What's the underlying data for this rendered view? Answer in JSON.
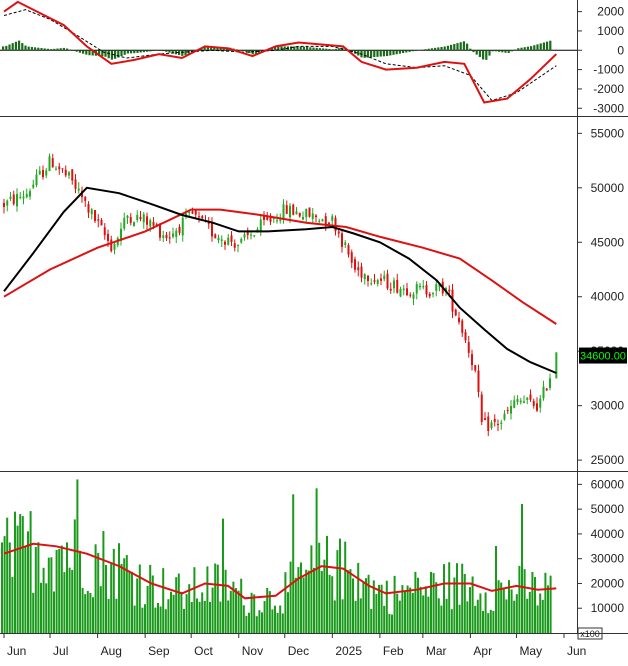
{
  "chart_data": {
    "type": "stock-chart",
    "x_axis": {
      "labels": [
        "Jun",
        "Jul",
        "Aug",
        "Sep",
        "Oct",
        "Nov",
        "Dec",
        "2025",
        "Feb",
        "Mar",
        "Apr",
        "May",
        "Jun"
      ],
      "range": [
        "2024-06-01",
        "2025-06-01"
      ]
    },
    "price_panel": {
      "type": "candlestick",
      "yticks": [
        25000,
        30000,
        35000,
        40000,
        45000,
        50000,
        55000
      ],
      "ylim": [
        24000,
        56500
      ],
      "last_price_label": "34600.00",
      "last_price": 34600,
      "colors": {
        "up": "#22aa22",
        "down": "#dd1111",
        "ma_short": "#000000",
        "ma_long": "#dd1111",
        "last_label_bg": "#000000",
        "last_label_text": "#00ff00"
      },
      "candles_close_approx": [
        [
          "2024-06-01",
          48500
        ],
        [
          "2024-06-15",
          49500
        ],
        [
          "2024-07-01",
          52500
        ],
        [
          "2024-07-15",
          50500
        ],
        [
          "2024-08-01",
          46500
        ],
        [
          "2024-08-10",
          44500
        ],
        [
          "2024-08-20",
          47500
        ],
        [
          "2024-09-01",
          47000
        ],
        [
          "2024-09-15",
          45500
        ],
        [
          "2024-10-01",
          47500
        ],
        [
          "2024-10-15",
          45800
        ],
        [
          "2024-11-01",
          44800
        ],
        [
          "2024-11-15",
          46500
        ],
        [
          "2024-12-01",
          48000
        ],
        [
          "2024-12-15",
          47500
        ],
        [
          "2025-01-01",
          47000
        ],
        [
          "2025-01-15",
          42500
        ],
        [
          "2025-02-01",
          41500
        ],
        [
          "2025-02-15",
          40800
        ],
        [
          "2025-03-01",
          40600
        ],
        [
          "2025-03-15",
          40800
        ],
        [
          "2025-03-25",
          37500
        ],
        [
          "2025-04-03",
          33500
        ],
        [
          "2025-04-08",
          28000
        ],
        [
          "2025-04-20",
          28500
        ],
        [
          "2025-05-01",
          30500
        ],
        [
          "2025-05-15",
          30000
        ],
        [
          "2025-05-27",
          34600
        ]
      ],
      "ma_short": [
        [
          "2024-06-01",
          40500
        ],
        [
          "2024-06-20",
          44000
        ],
        [
          "2024-07-10",
          47800
        ],
        [
          "2024-07-25",
          50000
        ],
        [
          "2024-08-15",
          49500
        ],
        [
          "2024-09-05",
          48500
        ],
        [
          "2024-09-25",
          47500
        ],
        [
          "2024-10-15",
          46800
        ],
        [
          "2024-11-01",
          46000
        ],
        [
          "2024-11-20",
          46000
        ],
        [
          "2024-12-15",
          46200
        ],
        [
          "2025-01-01",
          46400
        ],
        [
          "2025-01-15",
          45800
        ],
        [
          "2025-02-01",
          45000
        ],
        [
          "2025-02-20",
          43500
        ],
        [
          "2025-03-10",
          41500
        ],
        [
          "2025-03-25",
          39000
        ],
        [
          "2025-04-10",
          37000
        ],
        [
          "2025-04-25",
          35200
        ],
        [
          "2025-05-10",
          34000
        ],
        [
          "2025-05-27",
          33000
        ]
      ],
      "ma_long": [
        [
          "2024-06-01",
          40000
        ],
        [
          "2024-07-01",
          42500
        ],
        [
          "2024-08-01",
          44500
        ],
        [
          "2024-09-01",
          46000
        ],
        [
          "2024-10-01",
          48000
        ],
        [
          "2024-10-20",
          48000
        ],
        [
          "2024-11-15",
          47500
        ],
        [
          "2024-12-15",
          46800
        ],
        [
          "2025-01-10",
          46400
        ],
        [
          "2025-02-01",
          45500
        ],
        [
          "2025-03-01",
          44500
        ],
        [
          "2025-03-25",
          43500
        ],
        [
          "2025-04-15",
          41500
        ],
        [
          "2025-05-05",
          39500
        ],
        [
          "2025-05-27",
          37500
        ]
      ]
    },
    "macd_panel": {
      "yticks": [
        -3000,
        -2000,
        -1000,
        0,
        1000,
        2000
      ],
      "ylim": [
        -3400,
        2600
      ],
      "colors": {
        "histogram": "#1a6b1a",
        "macd": "#dd1111",
        "signal": "#000000"
      },
      "macd": [
        [
          "2024-06-01",
          2000
        ],
        [
          "2024-06-10",
          2500
        ],
        [
          "2024-06-25",
          1900
        ],
        [
          "2024-07-10",
          1300
        ],
        [
          "2024-07-25",
          200
        ],
        [
          "2024-08-10",
          -700
        ],
        [
          "2024-08-25",
          -500
        ],
        [
          "2024-09-10",
          -200
        ],
        [
          "2024-09-25",
          -400
        ],
        [
          "2024-10-10",
          200
        ],
        [
          "2024-10-25",
          100
        ],
        [
          "2024-11-10",
          -300
        ],
        [
          "2024-11-25",
          200
        ],
        [
          "2024-12-10",
          400
        ],
        [
          "2024-12-25",
          300
        ],
        [
          "2025-01-08",
          200
        ],
        [
          "2025-01-20",
          -600
        ],
        [
          "2025-02-05",
          -1000
        ],
        [
          "2025-02-25",
          -900
        ],
        [
          "2025-03-15",
          -600
        ],
        [
          "2025-03-28",
          -700
        ],
        [
          "2025-04-10",
          -2700
        ],
        [
          "2025-04-25",
          -2500
        ],
        [
          "2025-05-10",
          -1500
        ],
        [
          "2025-05-27",
          -200
        ]
      ],
      "signal": [
        [
          "2024-06-01",
          1800
        ],
        [
          "2024-06-15",
          2100
        ],
        [
          "2024-07-01",
          1600
        ],
        [
          "2024-07-20",
          700
        ],
        [
          "2024-08-05",
          -100
        ],
        [
          "2024-08-20",
          -400
        ],
        [
          "2024-09-10",
          -200
        ],
        [
          "2024-09-25",
          -100
        ],
        [
          "2024-10-15",
          0
        ],
        [
          "2024-11-05",
          -100
        ],
        [
          "2024-11-25",
          0
        ],
        [
          "2024-12-10",
          200
        ],
        [
          "2025-01-01",
          200
        ],
        [
          "2025-01-20",
          -200
        ],
        [
          "2025-02-05",
          -700
        ],
        [
          "2025-02-25",
          -900
        ],
        [
          "2025-03-15",
          -800
        ],
        [
          "2025-04-01",
          -1300
        ],
        [
          "2025-04-15",
          -2600
        ],
        [
          "2025-05-01",
          -2200
        ],
        [
          "2025-05-27",
          -800
        ]
      ]
    },
    "volume_panel": {
      "yticks": [
        10000,
        20000,
        30000,
        40000,
        50000,
        60000
      ],
      "ylim": [
        0,
        65000
      ],
      "unit_label": "x100",
      "colors": {
        "bars": "#1a9a1a",
        "ma": "#dd1111"
      },
      "volume_ma": [
        [
          "2024-06-01",
          32000
        ],
        [
          "2024-06-20",
          36000
        ],
        [
          "2024-07-05",
          35000
        ],
        [
          "2024-07-25",
          32000
        ],
        [
          "2024-08-15",
          27000
        ],
        [
          "2024-09-05",
          20000
        ],
        [
          "2024-09-25",
          16000
        ],
        [
          "2024-10-10",
          20000
        ],
        [
          "2024-10-25",
          19000
        ],
        [
          "2024-11-05",
          14000
        ],
        [
          "2024-11-25",
          15000
        ],
        [
          "2024-12-10",
          22000
        ],
        [
          "2024-12-25",
          27000
        ],
        [
          "2025-01-08",
          26000
        ],
        [
          "2025-01-25",
          19000
        ],
        [
          "2025-02-05",
          16000
        ],
        [
          "2025-02-25",
          17500
        ],
        [
          "2025-03-15",
          20000
        ],
        [
          "2025-04-01",
          20000
        ],
        [
          "2025-04-15",
          17000
        ],
        [
          "2025-05-01",
          19000
        ],
        [
          "2025-05-15",
          17500
        ],
        [
          "2025-05-27",
          18000
        ]
      ]
    }
  }
}
